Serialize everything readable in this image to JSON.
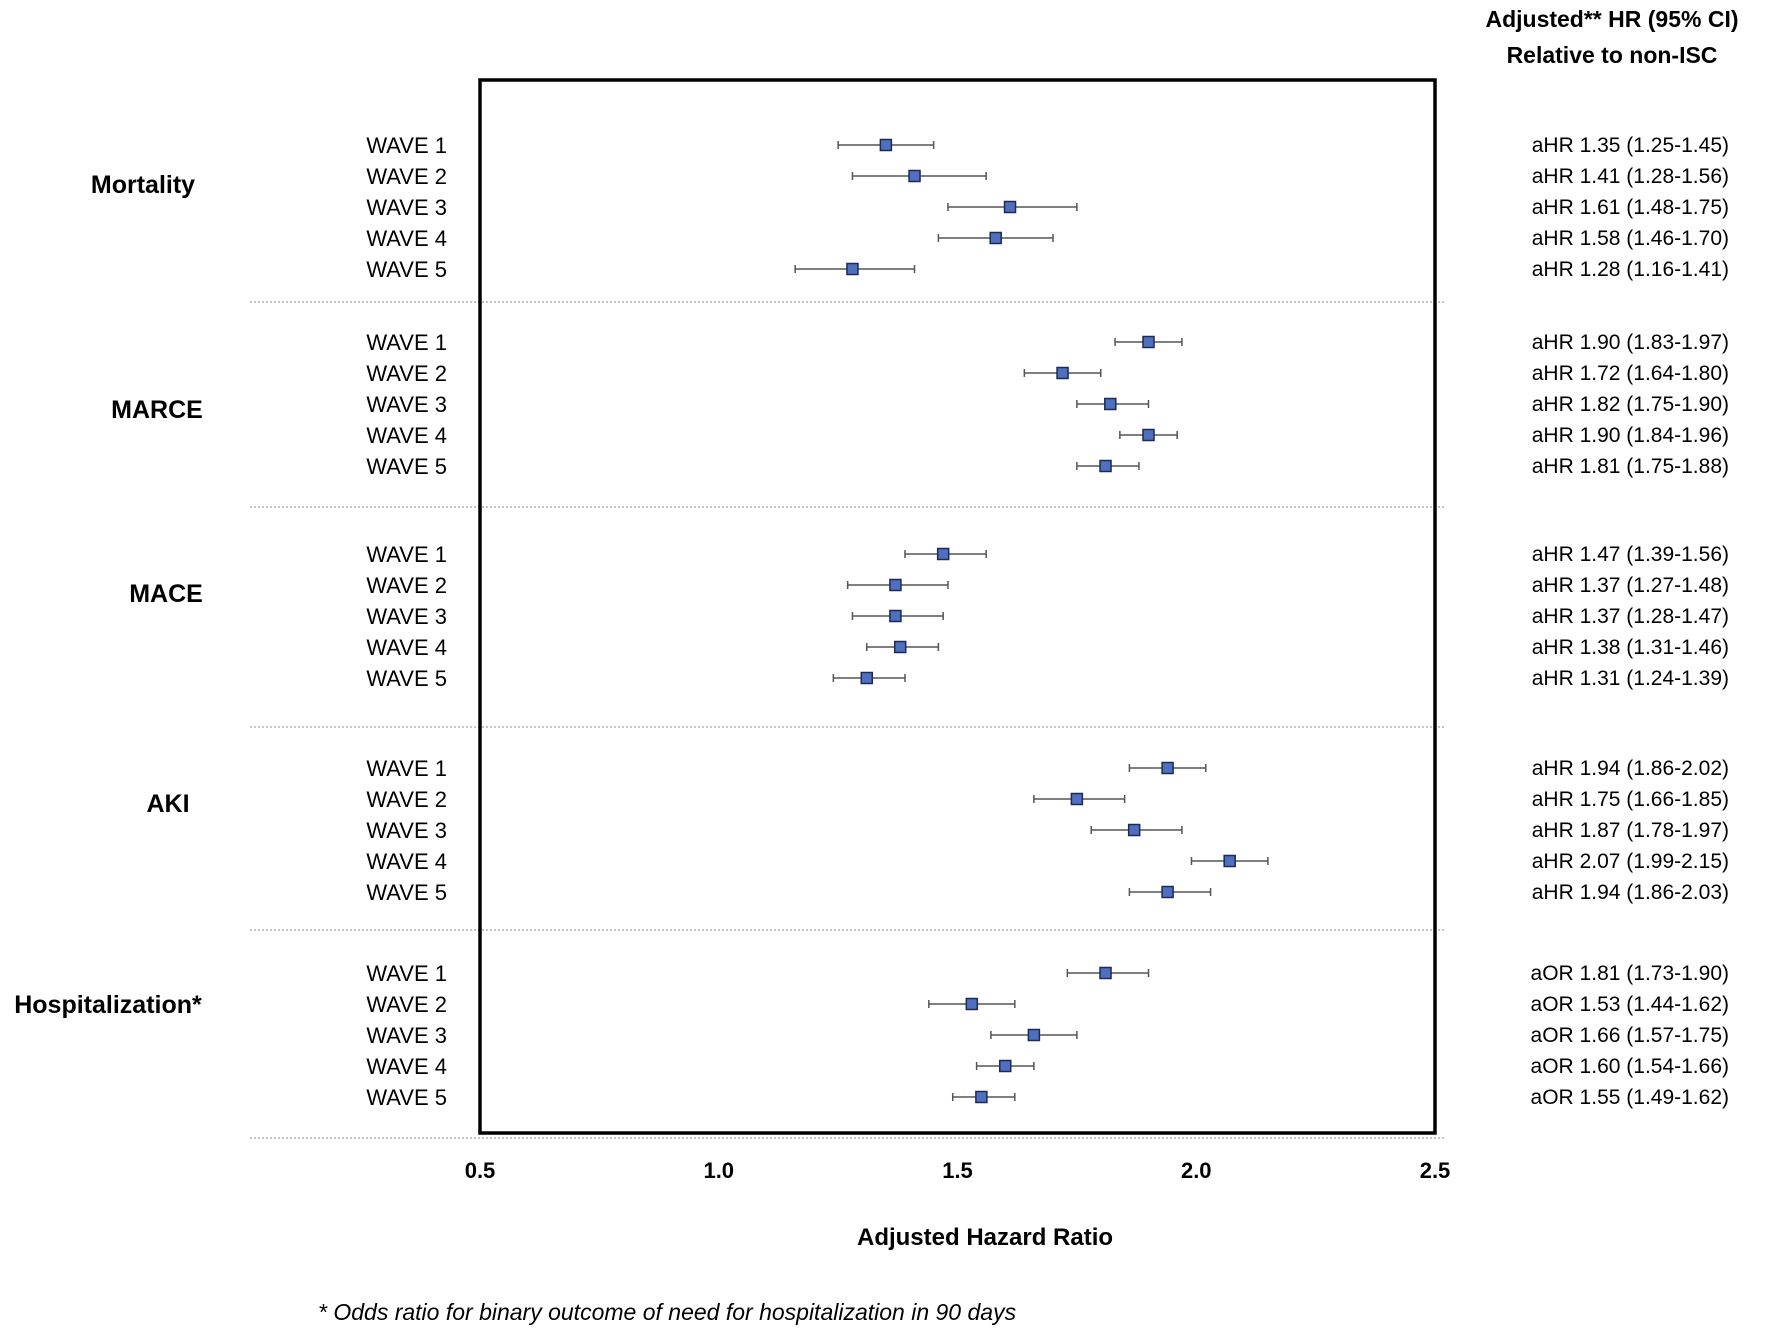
{
  "chart_data": {
    "type": "forest",
    "xlabel": "Adjusted Hazard Ratio",
    "xlim": [
      0.5,
      2.5
    ],
    "xticks": [
      "0.5",
      "1.0",
      "1.5",
      "2.0",
      "2.5"
    ],
    "header_line1": "Adjusted** HR (95% CI)",
    "header_line2": "Relative to non-ISC",
    "footnote": "* Odds ratio for binary outcome of need for hospitalization in 90 days",
    "groups": [
      {
        "name": "Mortality",
        "rows": [
          {
            "label": "WAVE 1",
            "est": 1.35,
            "lo": 1.25,
            "hi": 1.45,
            "text": "aHR 1.35 (1.25-1.45)"
          },
          {
            "label": "WAVE 2",
            "est": 1.41,
            "lo": 1.28,
            "hi": 1.56,
            "text": "aHR 1.41 (1.28-1.56)"
          },
          {
            "label": "WAVE 3",
            "est": 1.61,
            "lo": 1.48,
            "hi": 1.75,
            "text": "aHR 1.61 (1.48-1.75)"
          },
          {
            "label": "WAVE 4",
            "est": 1.58,
            "lo": 1.46,
            "hi": 1.7,
            "text": "aHR 1.58 (1.46-1.70)"
          },
          {
            "label": "WAVE 5",
            "est": 1.28,
            "lo": 1.16,
            "hi": 1.41,
            "text": "aHR 1.28 (1.16-1.41)"
          }
        ]
      },
      {
        "name": "MARCE",
        "rows": [
          {
            "label": "WAVE 1",
            "est": 1.9,
            "lo": 1.83,
            "hi": 1.97,
            "text": "aHR 1.90 (1.83-1.97)"
          },
          {
            "label": "WAVE 2",
            "est": 1.72,
            "lo": 1.64,
            "hi": 1.8,
            "text": "aHR 1.72 (1.64-1.80)"
          },
          {
            "label": "WAVE 3",
            "est": 1.82,
            "lo": 1.75,
            "hi": 1.9,
            "text": "aHR 1.82 (1.75-1.90)"
          },
          {
            "label": "WAVE 4",
            "est": 1.9,
            "lo": 1.84,
            "hi": 1.96,
            "text": "aHR 1.90 (1.84-1.96)"
          },
          {
            "label": "WAVE 5",
            "est": 1.81,
            "lo": 1.75,
            "hi": 1.88,
            "text": "aHR 1.81 (1.75-1.88)"
          }
        ]
      },
      {
        "name": "MACE",
        "rows": [
          {
            "label": "WAVE 1",
            "est": 1.47,
            "lo": 1.39,
            "hi": 1.56,
            "text": "aHR 1.47 (1.39-1.56)"
          },
          {
            "label": "WAVE 2",
            "est": 1.37,
            "lo": 1.27,
            "hi": 1.48,
            "text": "aHR 1.37 (1.27-1.48)"
          },
          {
            "label": "WAVE 3",
            "est": 1.37,
            "lo": 1.28,
            "hi": 1.47,
            "text": "aHR 1.37 (1.28-1.47)"
          },
          {
            "label": "WAVE 4",
            "est": 1.38,
            "lo": 1.31,
            "hi": 1.46,
            "text": "aHR 1.38 (1.31-1.46)"
          },
          {
            "label": "WAVE 5",
            "est": 1.31,
            "lo": 1.24,
            "hi": 1.39,
            "text": "aHR 1.31 (1.24-1.39)"
          }
        ]
      },
      {
        "name": "AKI",
        "rows": [
          {
            "label": "WAVE 1",
            "est": 1.94,
            "lo": 1.86,
            "hi": 2.02,
            "text": "aHR 1.94 (1.86-2.02)"
          },
          {
            "label": "WAVE 2",
            "est": 1.75,
            "lo": 1.66,
            "hi": 1.85,
            "text": "aHR 1.75 (1.66-1.85)"
          },
          {
            "label": "WAVE 3",
            "est": 1.87,
            "lo": 1.78,
            "hi": 1.97,
            "text": "aHR 1.87 (1.78-1.97)"
          },
          {
            "label": "WAVE 4",
            "est": 2.07,
            "lo": 1.99,
            "hi": 2.15,
            "text": "aHR 2.07 (1.99-2.15)"
          },
          {
            "label": "WAVE 5",
            "est": 1.94,
            "lo": 1.86,
            "hi": 2.03,
            "text": "aHR 1.94 (1.86-2.03)"
          }
        ]
      },
      {
        "name": "Hospitalization*",
        "rows": [
          {
            "label": "WAVE 1",
            "est": 1.81,
            "lo": 1.73,
            "hi": 1.9,
            "text": "aOR 1.81 (1.73-1.90)"
          },
          {
            "label": "WAVE 2",
            "est": 1.53,
            "lo": 1.44,
            "hi": 1.62,
            "text": "aOR 1.53 (1.44-1.62)"
          },
          {
            "label": "WAVE 3",
            "est": 1.66,
            "lo": 1.57,
            "hi": 1.75,
            "text": "aOR 1.66 (1.57-1.75)"
          },
          {
            "label": "WAVE 4",
            "est": 1.6,
            "lo": 1.54,
            "hi": 1.66,
            "text": "aOR 1.60 (1.54-1.66)"
          },
          {
            "label": "WAVE 5",
            "est": 1.55,
            "lo": 1.49,
            "hi": 1.62,
            "text": "aOR 1.55 (1.49-1.62)"
          }
        ]
      }
    ],
    "colors": {
      "marker_fill": "#4f6fbf",
      "marker_stroke": "#1c2a55",
      "ci_line": "#555555",
      "frame": "#000000",
      "separator": "#888888"
    }
  }
}
